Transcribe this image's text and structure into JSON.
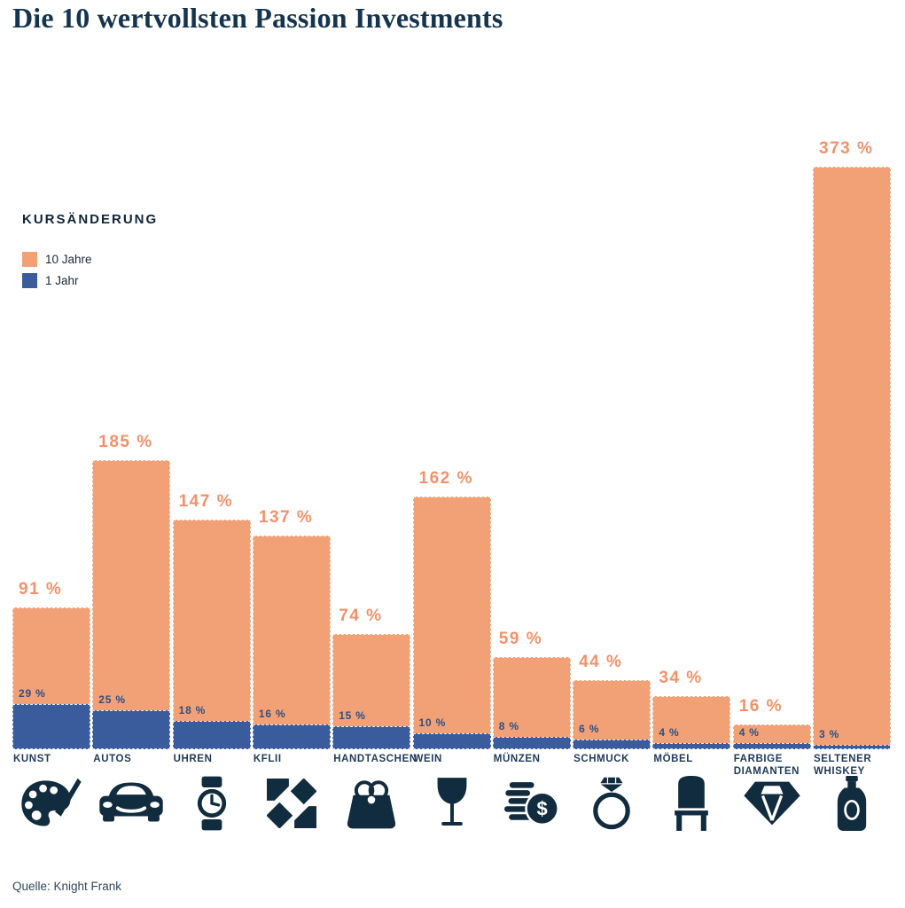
{
  "title": "Die 10 wertvollsten Passion Investments",
  "legend": {
    "title": "KURSÄNDERUNG",
    "items": [
      {
        "label": "10 Jahre",
        "color": "#F2A177"
      },
      {
        "label": "1 Jahr",
        "color": "#3A5C9C"
      }
    ]
  },
  "source": "Quelle: Knight Frank",
  "colors": {
    "orange_bar": "#F2A177",
    "orange_label": "#F2926B",
    "blue_bar": "#3A5C9C",
    "navy_text": "#1E3A5A",
    "icon_navy": "#112B3F"
  },
  "chart_data": {
    "type": "bar",
    "title": "Die 10 wertvollsten Passion Investments",
    "categories": [
      "KUNST",
      "AUTOS",
      "UHREN",
      "KFLII",
      "HANDTASCHEN",
      "WEIN",
      "MÜNZEN",
      "SCHMUCK",
      "MÖBEL",
      "FARBIGE DIAMANTEN",
      "SELTENER WHISKEY"
    ],
    "series": [
      {
        "name": "10 Jahre",
        "values": [
          91,
          185,
          147,
          137,
          74,
          162,
          59,
          44,
          34,
          16,
          373
        ],
        "color": "#F2A177"
      },
      {
        "name": "1 Jahr",
        "values": [
          29,
          25,
          18,
          16,
          15,
          10,
          8,
          6,
          4,
          4,
          3
        ],
        "color": "#3A5C9C"
      }
    ],
    "value_suffix": " %",
    "icons": [
      "palette-icon",
      "car-icon",
      "watch-icon",
      "kflii-pattern-icon",
      "handbag-icon",
      "wine-glass-icon",
      "coins-icon",
      "ring-icon",
      "chair-icon",
      "diamond-icon",
      "whiskey-bottle-icon"
    ],
    "ylim": [
      0,
      400
    ],
    "grid": false,
    "legend_position": "upper-left",
    "xlabel": "",
    "ylabel": ""
  }
}
